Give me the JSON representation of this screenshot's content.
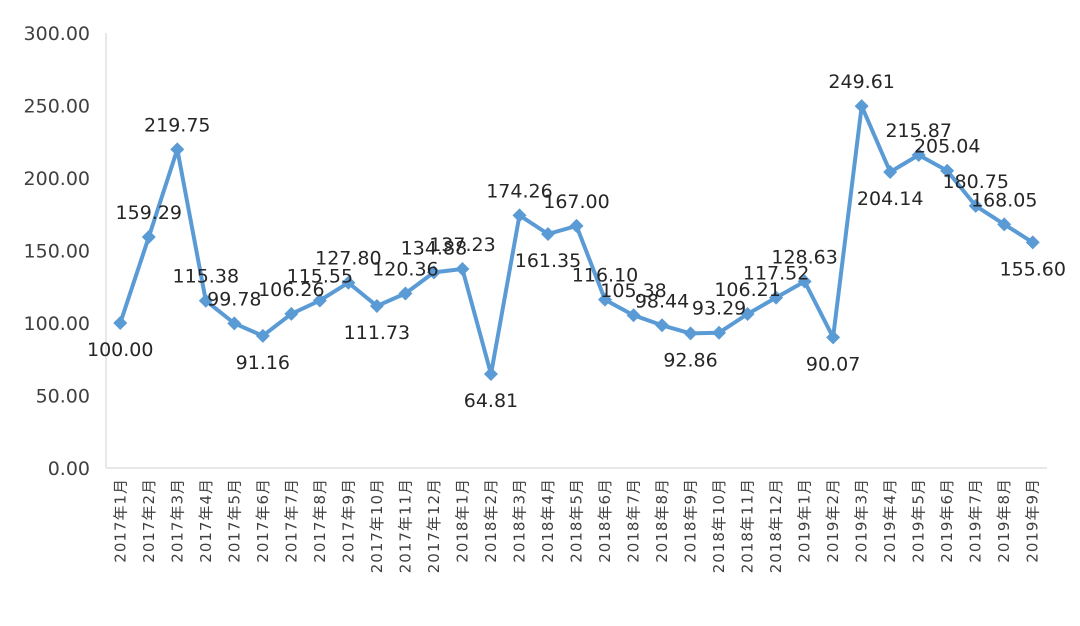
{
  "chart_data": {
    "type": "line",
    "title": "",
    "xlabel": "",
    "ylabel": "",
    "ylim": [
      0,
      300
    ],
    "y_ticks": [
      "0.00",
      "50.00",
      "100.00",
      "150.00",
      "200.00",
      "250.00",
      "300.00"
    ],
    "grid": false,
    "legend": "none",
    "colors": {
      "series": "#5b9bd5",
      "axis": "#d9d9d9",
      "text": "#404040"
    },
    "categories": [
      "2017年1月",
      "2017年2月",
      "2017年3月",
      "2017年4月",
      "2017年5月",
      "2017年6月",
      "2017年7月",
      "2017年8月",
      "2017年9月",
      "2017年10月",
      "2017年11月",
      "2017年12月",
      "2018年1月",
      "2018年2月",
      "2018年3月",
      "2018年4月",
      "2018年5月",
      "2018年6月",
      "2018年7月",
      "2018年8月",
      "2018年9月",
      "2018年10月",
      "2018年11月",
      "2018年12月",
      "2019年1月",
      "2019年2月",
      "2019年3月",
      "2019年4月",
      "2019年5月",
      "2019年6月",
      "2019年7月",
      "2019年8月",
      "2019年9月"
    ],
    "series": [
      {
        "marker": "diamond",
        "values": [
          100.0,
          159.29,
          219.75,
          115.38,
          99.78,
          91.16,
          106.26,
          115.55,
          127.8,
          111.73,
          120.36,
          134.88,
          137.23,
          64.81,
          174.26,
          161.35,
          167.0,
          116.1,
          105.38,
          98.44,
          92.86,
          93.29,
          106.21,
          117.52,
          128.63,
          90.07,
          249.61,
          204.14,
          215.87,
          205.04,
          180.75,
          168.05,
          155.6
        ],
        "labels": [
          "100.00",
          "159.29",
          "219.75",
          "115.38",
          "99.78",
          "91.16",
          "106.26",
          "115.55",
          "127.80",
          "111.73",
          "120.36",
          "134.88",
          "137.23",
          "64.81",
          "174.26",
          "161.35",
          "167.00",
          "116.10",
          "105.38",
          "98.44",
          "92.86",
          "93.29",
          "106.21",
          "117.52",
          "128.63",
          "90.07",
          "249.61",
          "204.14",
          "215.87",
          "205.04",
          "180.75",
          "168.05",
          "155.60"
        ]
      }
    ]
  }
}
